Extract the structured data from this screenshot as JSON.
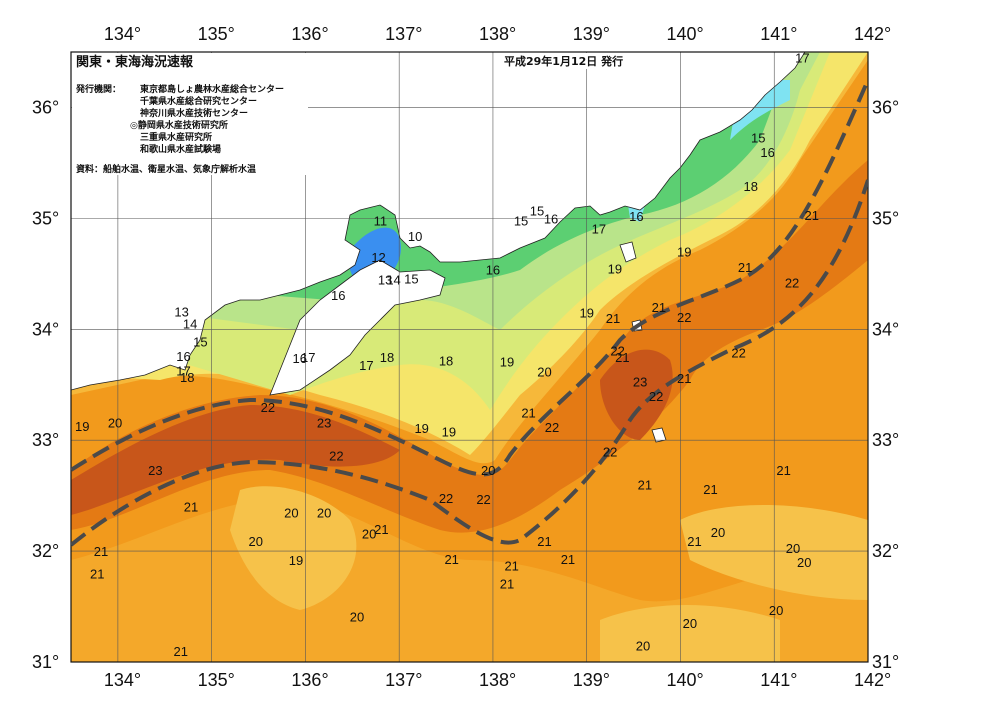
{
  "header": {
    "title": "関東・東海海況速報",
    "date_text": "平成29年1月12日 発行",
    "issuer_label": "発行機関：",
    "issuers": [
      "東京都島しょ農林水産総合センター",
      "千葉県水産総合研究センター",
      "神奈川県水産技術センター",
      "◎静岡県水産技術研究所",
      "三重県水産研究所",
      "和歌山県水産試験場"
    ],
    "sources": "資料：船舶水温、衛星水温、気象庁解析水温"
  },
  "axes": {
    "lon_labels": [
      "134°",
      "135°",
      "136°",
      "137°",
      "138°",
      "139°",
      "140°",
      "141°",
      "142°"
    ],
    "lat_labels": [
      "36°",
      "35°",
      "34°",
      "33°",
      "32°",
      "31°"
    ]
  },
  "isotherm_labels": [
    {
      "t": "17",
      "lon": 141.3,
      "lat": 36.45
    },
    {
      "t": "15",
      "lon": 140.83,
      "lat": 35.73
    },
    {
      "t": "16",
      "lon": 140.93,
      "lat": 35.6
    },
    {
      "t": "18",
      "lon": 140.75,
      "lat": 35.29
    },
    {
      "t": "21",
      "lon": 141.4,
      "lat": 35.03
    },
    {
      "t": "16",
      "lon": 139.53,
      "lat": 35.02
    },
    {
      "t": "15",
      "lon": 138.47,
      "lat": 35.07
    },
    {
      "t": "15",
      "lon": 138.3,
      "lat": 34.98
    },
    {
      "t": "16",
      "lon": 138.0,
      "lat": 34.54
    },
    {
      "t": "16",
      "lon": 138.62,
      "lat": 35.0
    },
    {
      "t": "17",
      "lon": 139.13,
      "lat": 34.91
    },
    {
      "t": "19",
      "lon": 140.04,
      "lat": 34.7
    },
    {
      "t": "21",
      "lon": 140.69,
      "lat": 34.56
    },
    {
      "t": "22",
      "lon": 141.19,
      "lat": 34.42
    },
    {
      "t": "19",
      "lon": 139.3,
      "lat": 34.55
    },
    {
      "t": "19",
      "lon": 139.0,
      "lat": 34.15
    },
    {
      "t": "21",
      "lon": 139.28,
      "lat": 34.1
    },
    {
      "t": "21",
      "lon": 139.38,
      "lat": 33.75
    },
    {
      "t": "21",
      "lon": 139.77,
      "lat": 34.2
    },
    {
      "t": "22",
      "lon": 140.04,
      "lat": 34.11
    },
    {
      "t": "22",
      "lon": 140.62,
      "lat": 33.79
    },
    {
      "t": "22",
      "lon": 139.33,
      "lat": 33.81
    },
    {
      "t": "23",
      "lon": 139.57,
      "lat": 33.53
    },
    {
      "t": "22",
      "lon": 139.74,
      "lat": 33.4
    },
    {
      "t": "21",
      "lon": 140.04,
      "lat": 33.56
    },
    {
      "t": "11",
      "lon": 136.8,
      "lat": 34.98
    },
    {
      "t": "10",
      "lon": 137.17,
      "lat": 34.84
    },
    {
      "t": "12",
      "lon": 136.78,
      "lat": 34.65
    },
    {
      "t": "13",
      "lon": 136.85,
      "lat": 34.45
    },
    {
      "t": "14",
      "lon": 136.94,
      "lat": 34.45
    },
    {
      "t": "15",
      "lon": 137.13,
      "lat": 34.46
    },
    {
      "t": "16",
      "lon": 136.35,
      "lat": 34.31
    },
    {
      "t": "13",
      "lon": 134.68,
      "lat": 34.16
    },
    {
      "t": "14",
      "lon": 134.77,
      "lat": 34.05
    },
    {
      "t": "15",
      "lon": 134.88,
      "lat": 33.89
    },
    {
      "t": "16",
      "lon": 134.7,
      "lat": 33.76
    },
    {
      "t": "17",
      "lon": 134.7,
      "lat": 33.63
    },
    {
      "t": "18",
      "lon": 134.74,
      "lat": 33.57
    },
    {
      "t": "16",
      "lon": 135.94,
      "lat": 33.74
    },
    {
      "t": "17",
      "lon": 136.03,
      "lat": 33.75
    },
    {
      "t": "18",
      "lon": 136.87,
      "lat": 33.75
    },
    {
      "t": "17",
      "lon": 136.65,
      "lat": 33.68
    },
    {
      "t": "18",
      "lon": 137.5,
      "lat": 33.72
    },
    {
      "t": "19",
      "lon": 138.15,
      "lat": 33.71
    },
    {
      "t": "20",
      "lon": 138.55,
      "lat": 33.62
    },
    {
      "t": "19",
      "lon": 133.62,
      "lat": 33.13
    },
    {
      "t": "20",
      "lon": 133.97,
      "lat": 33.16
    },
    {
      "t": "22",
      "lon": 135.6,
      "lat": 33.3
    },
    {
      "t": "23",
      "lon": 136.2,
      "lat": 33.16
    },
    {
      "t": "19",
      "lon": 137.24,
      "lat": 33.11
    },
    {
      "t": "19",
      "lon": 137.53,
      "lat": 33.08
    },
    {
      "t": "21",
      "lon": 138.38,
      "lat": 33.25
    },
    {
      "t": "22",
      "lon": 138.63,
      "lat": 33.12
    },
    {
      "t": "22",
      "lon": 139.25,
      "lat": 32.9
    },
    {
      "t": "23",
      "lon": 134.4,
      "lat": 32.73
    },
    {
      "t": "22",
      "lon": 136.33,
      "lat": 32.86
    },
    {
      "t": "20",
      "lon": 137.95,
      "lat": 32.73
    },
    {
      "t": "22",
      "lon": 137.5,
      "lat": 32.48
    },
    {
      "t": "22",
      "lon": 137.9,
      "lat": 32.47
    },
    {
      "t": "21",
      "lon": 139.62,
      "lat": 32.6
    },
    {
      "t": "21",
      "lon": 140.32,
      "lat": 32.56
    },
    {
      "t": "21",
      "lon": 141.1,
      "lat": 32.73
    },
    {
      "t": "21",
      "lon": 134.78,
      "lat": 32.4
    },
    {
      "t": "20",
      "lon": 135.85,
      "lat": 32.35
    },
    {
      "t": "20",
      "lon": 136.2,
      "lat": 32.35
    },
    {
      "t": "20",
      "lon": 136.68,
      "lat": 32.16
    },
    {
      "t": "21",
      "lon": 136.81,
      "lat": 32.2
    },
    {
      "t": "20",
      "lon": 135.47,
      "lat": 32.09
    },
    {
      "t": "21",
      "lon": 133.82,
      "lat": 32.0
    },
    {
      "t": "21",
      "lon": 133.78,
      "lat": 31.8
    },
    {
      "t": "19",
      "lon": 135.9,
      "lat": 31.92
    },
    {
      "t": "21",
      "lon": 137.56,
      "lat": 31.93
    },
    {
      "t": "21",
      "lon": 138.55,
      "lat": 32.09
    },
    {
      "t": "21",
      "lon": 138.2,
      "lat": 31.87
    },
    {
      "t": "21",
      "lon": 138.8,
      "lat": 31.93
    },
    {
      "t": "21",
      "lon": 138.15,
      "lat": 31.71
    },
    {
      "t": "20",
      "lon": 140.4,
      "lat": 32.17
    },
    {
      "t": "21",
      "lon": 140.15,
      "lat": 32.09
    },
    {
      "t": "20",
      "lon": 141.2,
      "lat": 32.03
    },
    {
      "t": "20",
      "lon": 141.32,
      "lat": 31.9
    },
    {
      "t": "20",
      "lon": 136.55,
      "lat": 31.41
    },
    {
      "t": "20",
      "lon": 140.1,
      "lat": 31.35
    },
    {
      "t": "20",
      "lon": 141.02,
      "lat": 31.47
    },
    {
      "t": "20",
      "lon": 139.6,
      "lat": 31.15
    },
    {
      "t": "21",
      "lon": 134.67,
      "lat": 31.1
    }
  ],
  "colors": {
    "deep": "#b9440c",
    "warm1": "#e47a14",
    "warm2": "#f29a1c",
    "warm3": "#f6b83a",
    "yellow": "#f5e56a",
    "lightgreen": "#b9e48a",
    "green": "#5ccf72",
    "cyan": "#7fe3f2",
    "blue": "#3a8ff0",
    "land": "#ffffff",
    "kuroshio": "#4a4a4a"
  }
}
